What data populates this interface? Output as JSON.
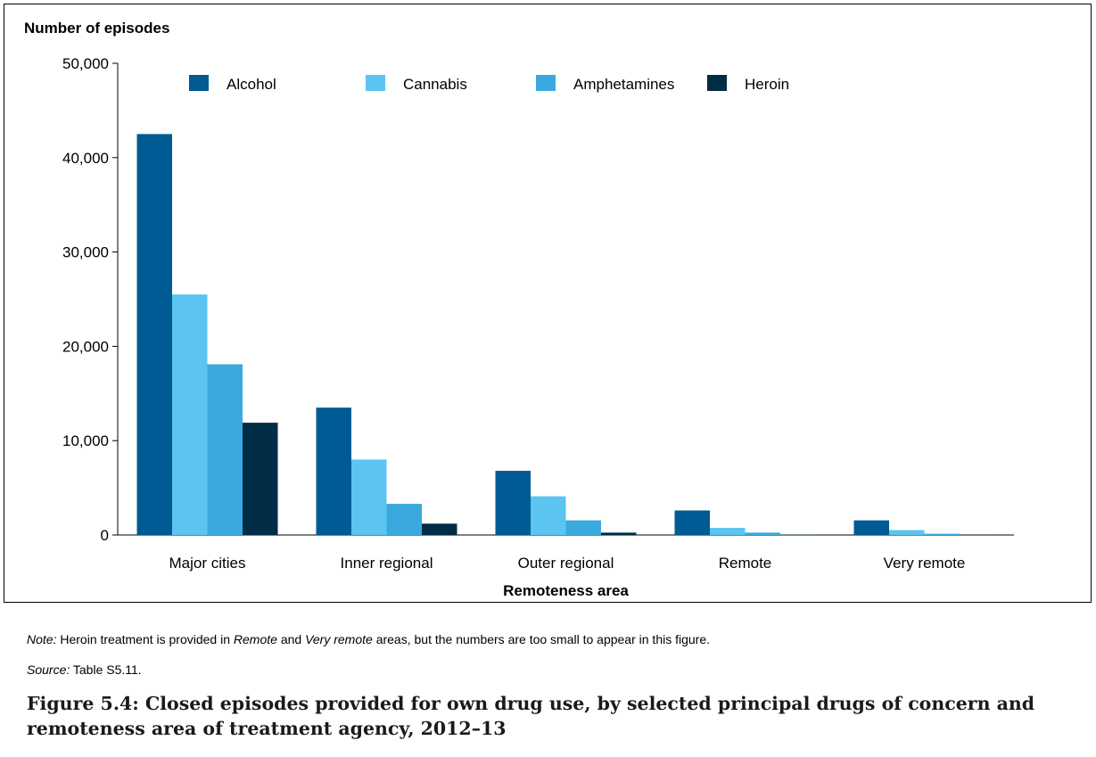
{
  "chart_data": {
    "type": "bar",
    "ylabel": "Number of episodes",
    "xlabel": "Remoteness area",
    "ylim": [
      0,
      50000
    ],
    "yticks": [
      0,
      10000,
      20000,
      30000,
      40000,
      50000
    ],
    "ytick_labels": [
      "0",
      "10,000",
      "20,000",
      "30,000",
      "40,000",
      "50,000"
    ],
    "categories": [
      "Major cities",
      "Inner regional",
      "Outer regional",
      "Remote",
      "Very remote"
    ],
    "series": [
      {
        "name": "Alcohol",
        "color": "#005b94",
        "values": [
          42500,
          13500,
          6800,
          2600,
          1550
        ]
      },
      {
        "name": "Cannabis",
        "color": "#5bc4f1",
        "values": [
          25500,
          8000,
          4100,
          750,
          520
        ]
      },
      {
        "name": "Amphetamines",
        "color": "#3aa9de",
        "values": [
          18100,
          3300,
          1550,
          250,
          130
        ]
      },
      {
        "name": "Heroin",
        "color": "#002c46",
        "values": [
          11900,
          1200,
          250,
          40,
          30
        ]
      }
    ],
    "legend_position": "top",
    "grid": false
  },
  "notes": {
    "note_prefix": "Note:",
    "note_part1": " Heroin treatment is provided in ",
    "note_remote": "Remote",
    "note_and": " and ",
    "note_very_remote": "Very remote",
    "note_part2": " areas, but the numbers are too small to appear in this figure.",
    "source_prefix": "Source:",
    "source_text": " Table S5.11."
  },
  "caption": "Figure 5.4: Closed episodes provided for own drug use, by selected principal drugs of concern and remoteness area of treatment agency, 2012–13"
}
